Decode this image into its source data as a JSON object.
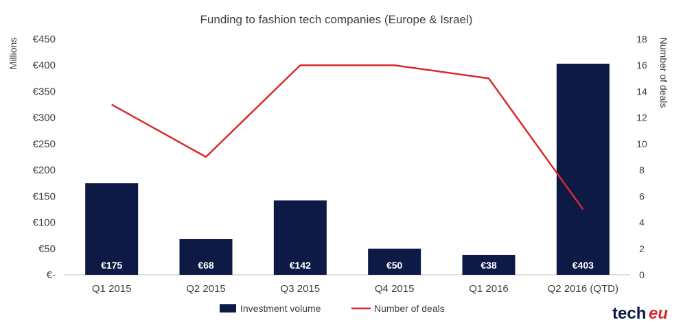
{
  "chart_data": {
    "type": "bar",
    "title": "Funding to fashion tech companies (Europe & Israel)",
    "categories": [
      "Q1 2015",
      "Q2 2015",
      "Q3 2015",
      "Q4 2015",
      "Q1 2016",
      "Q2 2016 (QTD)"
    ],
    "series": [
      {
        "name": "Investment volume",
        "type": "bar",
        "axis": "left",
        "color": "#0c1a45",
        "values": [
          175,
          68,
          142,
          50,
          38,
          403
        ],
        "labels": [
          "€175",
          "€68",
          "€142",
          "€50",
          "€38",
          "€403"
        ]
      },
      {
        "name": "Number of deals",
        "type": "line",
        "axis": "right",
        "color": "#d9292e",
        "values": [
          13,
          9,
          16,
          16,
          15,
          5
        ]
      }
    ],
    "y_left": {
      "label": "Millions",
      "ylim": [
        0,
        450
      ],
      "ticks": [
        0,
        50,
        100,
        150,
        200,
        250,
        300,
        350,
        400,
        450
      ],
      "tick_labels": [
        "€-",
        "€50",
        "€100",
        "€150",
        "€200",
        "€250",
        "€300",
        "€350",
        "€400",
        "€450"
      ]
    },
    "y_right": {
      "label": "Number of deals",
      "ylim": [
        0,
        18
      ],
      "ticks": [
        0,
        2,
        4,
        6,
        8,
        10,
        12,
        14,
        16,
        18
      ],
      "tick_labels": [
        "0",
        "2",
        "4",
        "6",
        "8",
        "10",
        "12",
        "14",
        "16",
        "18"
      ]
    },
    "grid": false,
    "legend": "bottom-center"
  },
  "logo": {
    "tech": "tech",
    "eu": "eu"
  }
}
